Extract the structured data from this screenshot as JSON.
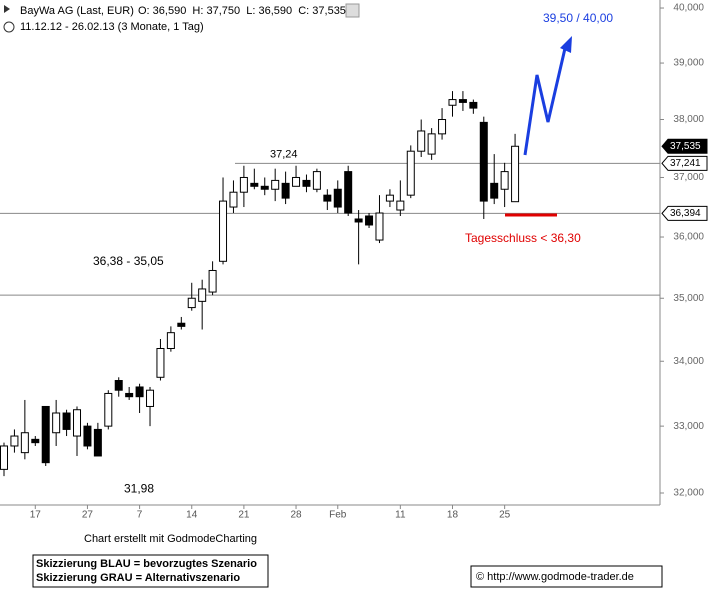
{
  "chart_data": {
    "type": "candlestick",
    "title": "BayWa AG (Last, EUR)",
    "ohlc_text": "O: 36,590  H: 37,750  L: 36,590  C: 37,535",
    "period": "11.12.12 - 26.02.13 (3 Monate, 1 Tag)",
    "log_scale": true,
    "ylim": [
      31.824,
      40.148
    ],
    "yticks": [
      {
        "value": 32,
        "label": "32,000"
      },
      {
        "value": 33,
        "label": "33,000"
      },
      {
        "value": 34,
        "label": "34,000"
      },
      {
        "value": 35,
        "label": "35,000"
      },
      {
        "value": 36,
        "label": "36,000"
      },
      {
        "value": 37,
        "label": "37,000"
      },
      {
        "value": 38,
        "label": "38,000"
      },
      {
        "value": 39,
        "label": "39,000"
      },
      {
        "value": 40,
        "label": "40,000"
      }
    ],
    "categories": [
      null,
      null,
      null,
      "17",
      null,
      null,
      null,
      null,
      "27",
      null,
      null,
      null,
      null,
      "7",
      null,
      null,
      null,
      null,
      "14",
      null,
      null,
      null,
      null,
      "21",
      null,
      null,
      null,
      null,
      "28",
      null,
      null,
      null,
      "Feb",
      null,
      null,
      null,
      null,
      null,
      "11",
      null,
      null,
      null,
      null,
      "18",
      null,
      null,
      null,
      null,
      "25",
      null
    ],
    "open": [
      32.35,
      32.7,
      32.6,
      32.8,
      33.3,
      32.9,
      33.2,
      32.85,
      33.0,
      32.95,
      33.0,
      33.7,
      33.5,
      33.6,
      33.3,
      33.75,
      34.2,
      34.6,
      34.85,
      34.95,
      35.1,
      35.6,
      36.5,
      36.75,
      36.9,
      36.85,
      36.8,
      36.9,
      36.85,
      36.95,
      36.8,
      36.7,
      36.8,
      37.1,
      36.3,
      36.35,
      35.95,
      36.6,
      36.45,
      36.7,
      37.45,
      37.4,
      37.75,
      38.25,
      38.35,
      38.3,
      37.95,
      36.9,
      36.8,
      36.59
    ],
    "high": [
      32.75,
      32.95,
      33.4,
      32.85,
      33.3,
      33.4,
      33.25,
      33.3,
      33.05,
      33.05,
      33.55,
      33.75,
      33.6,
      33.65,
      33.6,
      34.35,
      34.55,
      34.7,
      35.25,
      35.3,
      35.6,
      37.0,
      36.95,
      37.2,
      37.15,
      37.0,
      37.15,
      37.1,
      37.2,
      37.05,
      37.15,
      36.8,
      36.95,
      37.2,
      36.45,
      36.4,
      36.7,
      36.8,
      36.95,
      37.55,
      38.0,
      37.85,
      38.2,
      38.5,
      38.5,
      38.35,
      38.05,
      37.4,
      37.25,
      37.75
    ],
    "low": [
      32.25,
      32.6,
      32.5,
      32.7,
      32.4,
      32.7,
      32.85,
      32.55,
      32.65,
      32.55,
      32.95,
      33.45,
      33.4,
      33.2,
      33.0,
      33.7,
      34.15,
      34.5,
      34.8,
      34.5,
      35.05,
      35.55,
      36.4,
      36.5,
      36.8,
      36.7,
      36.6,
      36.55,
      36.85,
      36.75,
      36.75,
      36.45,
      36.4,
      36.35,
      35.55,
      36.15,
      35.9,
      36.5,
      36.35,
      36.65,
      37.35,
      37.3,
      37.65,
      38.05,
      38.15,
      38.1,
      36.3,
      36.55,
      36.5,
      36.59
    ],
    "close": [
      32.7,
      32.85,
      32.9,
      32.75,
      32.45,
      33.2,
      32.95,
      33.25,
      32.7,
      32.55,
      33.5,
      33.55,
      33.45,
      33.45,
      33.55,
      34.2,
      34.45,
      34.55,
      35.0,
      35.15,
      35.45,
      36.6,
      36.75,
      37.0,
      36.85,
      36.8,
      36.95,
      36.65,
      37.0,
      36.85,
      37.1,
      36.6,
      36.5,
      36.4,
      36.25,
      36.2,
      36.4,
      36.7,
      36.6,
      37.45,
      37.8,
      37.75,
      38.0,
      38.35,
      38.3,
      38.2,
      36.6,
      36.65,
      37.1,
      37.535
    ],
    "price_tags": [
      {
        "value": 37.535,
        "label": "37,535"
      },
      {
        "value": 37.241,
        "label": "37,241"
      },
      {
        "value": 36.394,
        "label": "36,394"
      }
    ],
    "level_label": {
      "value": 37.24,
      "label": "37,24"
    },
    "range_label": {
      "values": [
        36.38,
        35.05
      ],
      "label": "36,38 - 35,05"
    },
    "low_label": {
      "value": 31.98,
      "label": "31,98"
    },
    "target_label": "39,50 / 40,00",
    "stop_label": {
      "value": 36.3,
      "label": "Tagesschluss < 36,30"
    },
    "credit": "Chart erstellt mit GodmodeCharting",
    "legend_lines": [
      "Skizzierung BLAU = bevorzugtes Szenario",
      "Skizzierung GRAU = Alternativszenario"
    ],
    "copyright": "© http://www.godmode-trader.de"
  }
}
